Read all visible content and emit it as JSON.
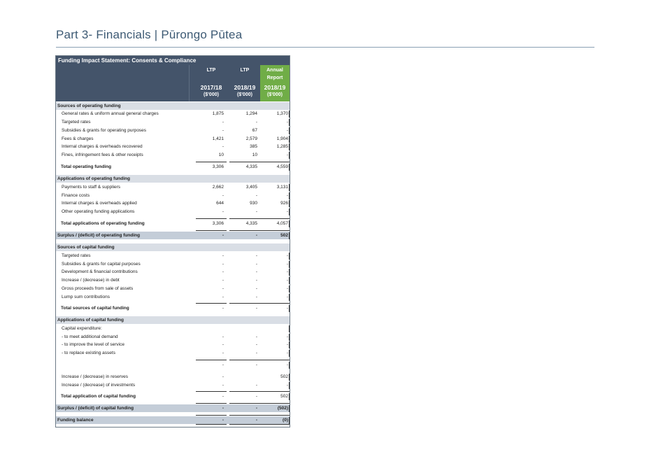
{
  "page": {
    "title": "Part 3- Financials | Pūrongo Pūtea"
  },
  "table": {
    "title": "Funding Impact Statement: Consents & Compliance",
    "columns": [
      {
        "l1": "LTP",
        "l2": "",
        "year": "2017/18",
        "unit": "($'000)"
      },
      {
        "l1": "LTP",
        "l2": "",
        "year": "2018/19",
        "unit": "($'000)"
      },
      {
        "l1": "Annual",
        "l2": "Report",
        "year": "2018/19",
        "unit": "($'000)"
      }
    ],
    "rows": [
      {
        "label": "Sources of operating funding",
        "kind": "section"
      },
      {
        "label": "General rates & uniform annual general charges",
        "v": [
          "1,875",
          "1,294",
          "1,370"
        ]
      },
      {
        "label": "Targeted rates",
        "v": [
          "-",
          "-",
          "-"
        ]
      },
      {
        "label": "Subsidies & grants for operating purposes",
        "v": [
          "-",
          "67",
          "-"
        ]
      },
      {
        "label": "Fees & charges",
        "v": [
          "1,421",
          "2,579",
          "1,904"
        ]
      },
      {
        "label": "Internal charges & overheads recovered",
        "v": [
          "-",
          "385",
          "1,285"
        ]
      },
      {
        "label": "Fines, infringement fees & other receipts",
        "v": [
          "10",
          "10",
          "-"
        ]
      },
      {
        "label": "Total operating funding",
        "kind": "total",
        "v": [
          "3,306",
          "4,335",
          "4,559"
        ]
      },
      {
        "label": "Applications of operating funding",
        "kind": "section"
      },
      {
        "label": "Payments to staff & suppliers",
        "v": [
          "2,662",
          "3,405",
          "3,131"
        ]
      },
      {
        "label": "Finance costs",
        "v": [
          "-",
          "-",
          "-"
        ]
      },
      {
        "label": "Internal charges & overheads applied",
        "v": [
          "644",
          "930",
          "926"
        ]
      },
      {
        "label": "Other operating funding applications",
        "v": [
          "-",
          "-",
          "-"
        ]
      },
      {
        "label": "Total applications of operating funding",
        "kind": "total",
        "v": [
          "3,306",
          "4,335",
          "4,057"
        ]
      },
      {
        "label": "Surplus / (deficit) of operating funding",
        "kind": "summary",
        "v": [
          "-",
          "-",
          "502"
        ]
      },
      {
        "label": "Sources of capital funding",
        "kind": "section"
      },
      {
        "label": "Targeted rates",
        "v": [
          "-",
          "-",
          "-"
        ]
      },
      {
        "label": "Subsidies & grants for capital purposes",
        "v": [
          "-",
          "-",
          "-"
        ]
      },
      {
        "label": "Development & financial contributions",
        "v": [
          "-",
          "-",
          "-"
        ]
      },
      {
        "label": "Increase / (decrease) in debt",
        "v": [
          "-",
          "-",
          "-"
        ]
      },
      {
        "label": "Gross proceeds from sale of assets",
        "v": [
          "-",
          "-",
          "-"
        ]
      },
      {
        "label": "Lump sum contributions",
        "v": [
          "-",
          "-",
          "-"
        ]
      },
      {
        "label": "Total sources of capital funding",
        "kind": "total",
        "v": [
          "-",
          "-",
          "-"
        ]
      },
      {
        "label": "Applications of capital funding",
        "kind": "section"
      },
      {
        "label": "Capital expenditure:",
        "v": [
          "",
          "",
          ""
        ]
      },
      {
        "label": "- to meet additional demand",
        "v": [
          "-",
          "-",
          "-"
        ]
      },
      {
        "label": "- to improve the level of service",
        "v": [
          "-",
          "-",
          "-"
        ]
      },
      {
        "label": "- to replace existing assets",
        "v": [
          "-",
          "-",
          "-"
        ]
      },
      {
        "label": "",
        "kind": "subtotal",
        "v": [
          "-",
          "-",
          "-"
        ]
      },
      {
        "label": "Increase / (decrease) in reserves",
        "v": [
          "-",
          "",
          "502"
        ]
      },
      {
        "label": "Increase / (decrease) of investments",
        "v": [
          "-",
          "-",
          "-"
        ]
      },
      {
        "label": "Total application of capital funding",
        "kind": "total",
        "v": [
          "-",
          "-",
          "502"
        ]
      },
      {
        "label": "Surplus / (deficit) of capital funding",
        "kind": "summary",
        "v": [
          "-",
          "-",
          "(502)"
        ]
      },
      {
        "label": "Funding balance",
        "kind": "summary",
        "v": [
          "-",
          "-",
          "(0)"
        ]
      }
    ]
  }
}
